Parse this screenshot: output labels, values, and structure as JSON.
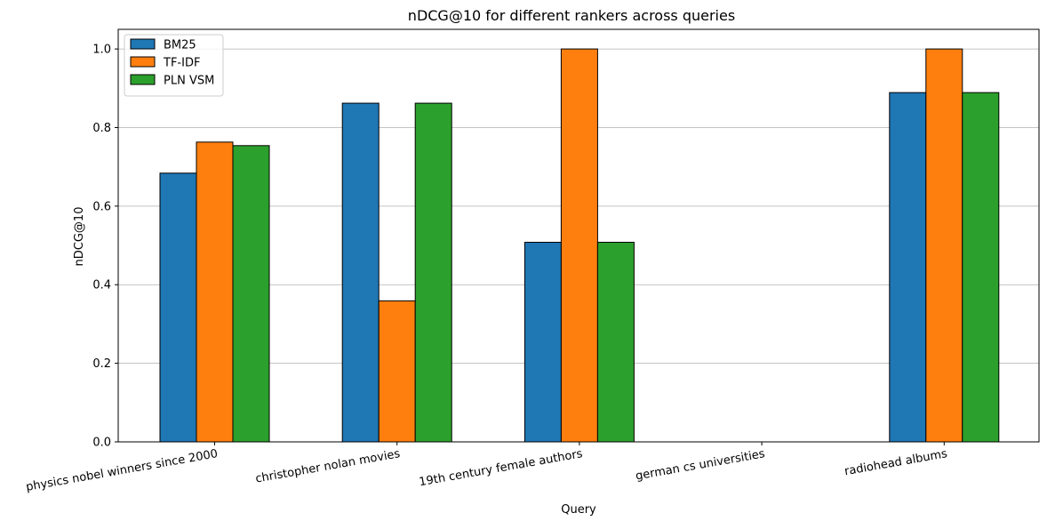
{
  "chart_data": {
    "type": "bar",
    "title": "nDCG@10 for different rankers across queries",
    "xlabel": "Query",
    "ylabel": "nDCG@10",
    "categories": [
      "physics nobel winners since 2000",
      "christopher nolan movies",
      "19th century female authors",
      "german cs universities",
      "radiohead albums"
    ],
    "series": [
      {
        "name": "BM25",
        "color": "#1f77b4",
        "values": [
          0.684,
          0.862,
          0.508,
          0.0,
          0.889
        ]
      },
      {
        "name": "TF-IDF",
        "color": "#ff7f0e",
        "values": [
          0.763,
          0.359,
          1.0,
          0.0,
          1.0
        ]
      },
      {
        "name": "PLN VSM",
        "color": "#2ca02c",
        "values": [
          0.754,
          0.862,
          0.508,
          0.0,
          0.889
        ]
      }
    ],
    "ylim": [
      0,
      1.05
    ],
    "yticks": [
      "0.0",
      "0.2",
      "0.4",
      "0.6",
      "0.8",
      "1.0"
    ],
    "ytick_values": [
      0,
      0.2,
      0.4,
      0.6,
      0.8,
      1.0
    ],
    "grid": "y",
    "legend_position": "top-left"
  }
}
